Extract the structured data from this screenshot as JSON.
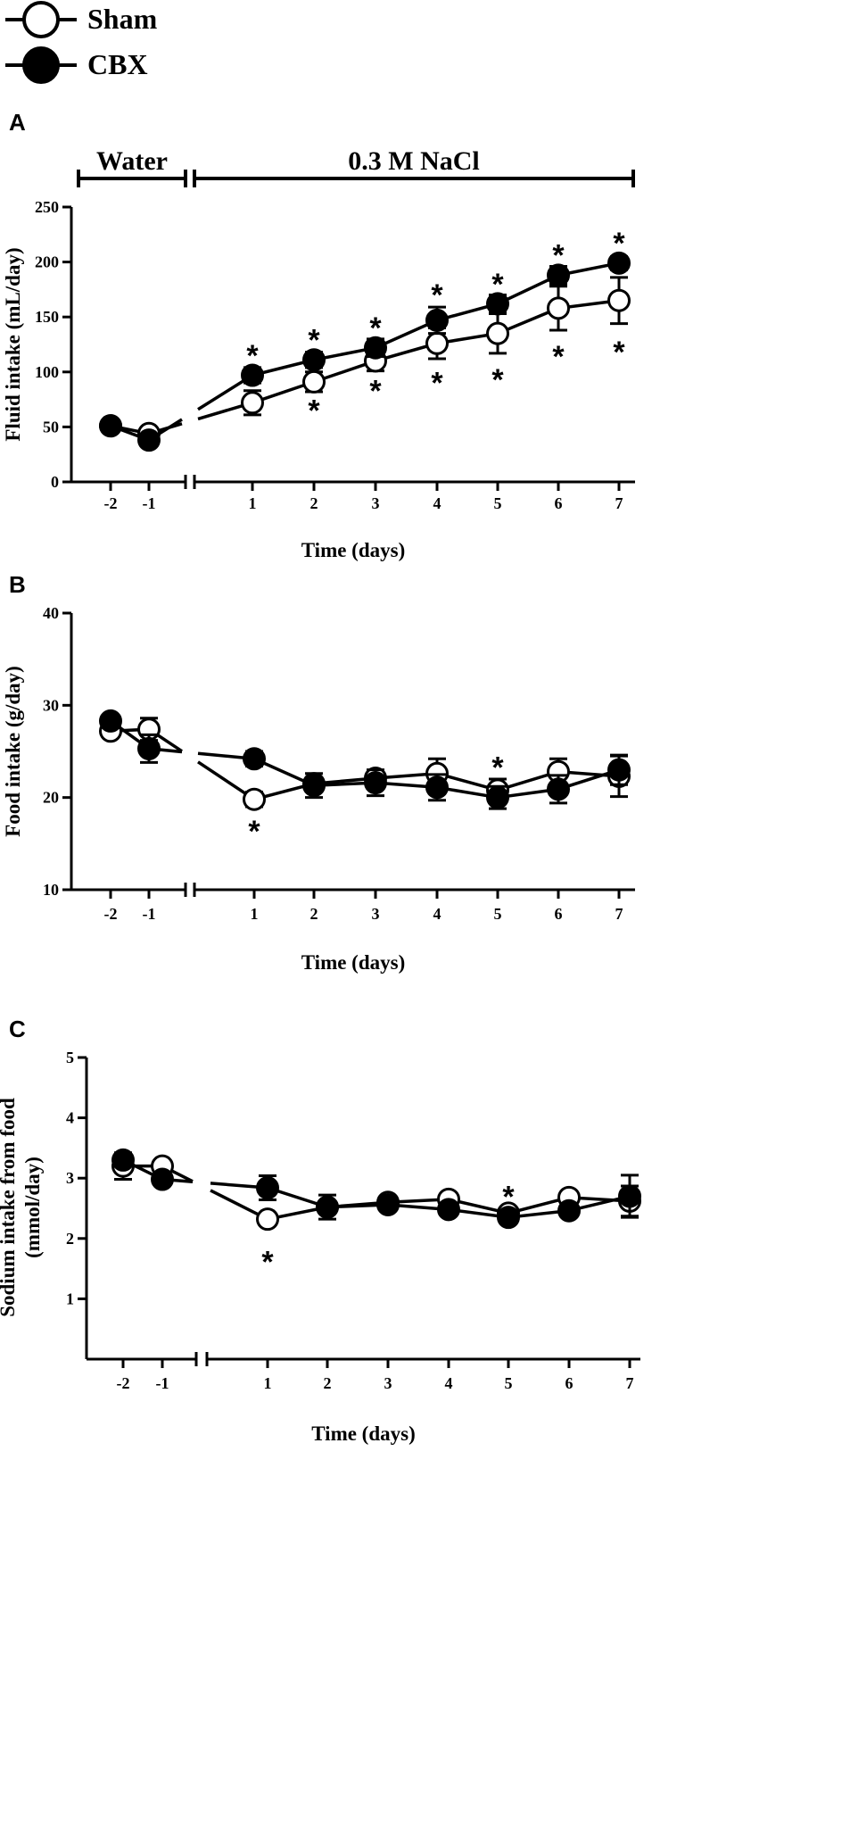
{
  "legend": {
    "items": [
      {
        "label": "Sham",
        "fill": "#ffffff"
      },
      {
        "label": "CBX",
        "fill": "#000000"
      }
    ]
  },
  "colors": {
    "line": "#000000",
    "sham_fill": "#ffffff",
    "cbx_fill": "#000000"
  },
  "brackets": {
    "water": "Water",
    "nacl": "0.3 M NaCl"
  },
  "chart_data": [
    {
      "panel": "A",
      "type": "line",
      "xlabel": "Time (days)",
      "ylabel": "Fluid intake (mL/day)",
      "ylabel_lines": [
        "Fluid intake (mL/day)"
      ],
      "ylim": [
        0,
        250
      ],
      "yticks": [
        0,
        50,
        100,
        150,
        200,
        250
      ],
      "categories": [
        "-2",
        "-1",
        "1",
        "2",
        "3",
        "4",
        "5",
        "6",
        "7"
      ],
      "broken_axis_between": [
        "-1",
        "1"
      ],
      "series": [
        {
          "name": "Sham",
          "values": [
            51,
            44,
            72,
            91,
            110,
            126,
            135,
            158,
            165
          ],
          "errors": [
            2,
            3,
            11,
            9,
            9,
            14,
            18,
            20,
            21
          ]
        },
        {
          "name": "CBX",
          "values": [
            51,
            38,
            97,
            111,
            122,
            147,
            162,
            188,
            199
          ],
          "errors": [
            2,
            3,
            7,
            7,
            8,
            12,
            8,
            8,
            6
          ]
        }
      ],
      "annotations": [
        {
          "text": "*",
          "x": "1",
          "y": 117
        },
        {
          "text": "*",
          "x": "2",
          "y": 131
        },
        {
          "text": "*",
          "x": "3",
          "y": 142
        },
        {
          "text": "*",
          "x": "4",
          "y": 172
        },
        {
          "text": "*",
          "x": "5",
          "y": 182
        },
        {
          "text": "*",
          "x": "6",
          "y": 208
        },
        {
          "text": "*",
          "x": "7",
          "y": 219
        },
        {
          "text": "*",
          "x": "2",
          "y": 67
        },
        {
          "text": "*",
          "x": "3",
          "y": 85
        },
        {
          "text": "*",
          "x": "4",
          "y": 92
        },
        {
          "text": "*",
          "x": "5",
          "y": 95
        },
        {
          "text": "*",
          "x": "6",
          "y": 116
        },
        {
          "text": "*",
          "x": "7",
          "y": 120
        }
      ]
    },
    {
      "panel": "B",
      "type": "line",
      "xlabel": "Time (days)",
      "ylabel": "Food intake (g/day)",
      "ylabel_lines": [
        "Food intake (g/day)"
      ],
      "ylim": [
        10,
        40
      ],
      "yticks": [
        10,
        20,
        30,
        40
      ],
      "categories": [
        "-2",
        "-1",
        "1",
        "2",
        "3",
        "4",
        "5",
        "6",
        "7"
      ],
      "broken_axis_between": [
        "-1",
        "1"
      ],
      "series": [
        {
          "name": "Sham",
          "values": [
            27.2,
            27.4,
            19.8,
            21.5,
            22.1,
            22.6,
            20.8,
            22.8,
            22.3
          ],
          "errors": [
            0.6,
            1.2,
            0.8,
            0.6,
            0.6,
            1.6,
            1.2,
            1.4,
            2.2
          ]
        },
        {
          "name": "CBX",
          "values": [
            28.3,
            25.3,
            24.2,
            21.3,
            21.6,
            21.1,
            20.0,
            20.9,
            23.0
          ],
          "errors": [
            0.6,
            1.5,
            0.8,
            1.3,
            1.4,
            1.4,
            1.2,
            1.5,
            1.6
          ]
        }
      ],
      "annotations": [
        {
          "text": "*",
          "x": "1",
          "y": 16.6
        },
        {
          "text": "*",
          "x": "5",
          "y": 23.5
        }
      ]
    },
    {
      "panel": "C",
      "type": "line",
      "xlabel": "Time (days)",
      "ylabel": "Sodium intake from food (mmol/day)",
      "ylabel_lines": [
        "Sodium intake from food",
        "(mmol/day)"
      ],
      "ylim": [
        0,
        5
      ],
      "yticks": [
        1,
        2,
        3,
        4,
        5
      ],
      "categories": [
        "-2",
        "-1",
        "1",
        "2",
        "3",
        "4",
        "5",
        "6",
        "7"
      ],
      "broken_axis_between": [
        "-1",
        "1"
      ],
      "series": [
        {
          "name": "Sham",
          "values": [
            3.2,
            3.2,
            2.32,
            2.52,
            2.6,
            2.65,
            2.42,
            2.68,
            2.62
          ],
          "errors": [
            0.22,
            0.1,
            0.1,
            0.1,
            0.1,
            0.1,
            0.1,
            0.1,
            0.25
          ]
        },
        {
          "name": "CBX",
          "values": [
            3.3,
            2.98,
            2.84,
            2.52,
            2.56,
            2.48,
            2.35,
            2.46,
            2.7
          ],
          "errors": [
            0.1,
            0.1,
            0.2,
            0.2,
            0.1,
            0.1,
            0.1,
            0.1,
            0.35
          ]
        }
      ],
      "annotations": [
        {
          "text": "*",
          "x": "1",
          "y": 1.65
        },
        {
          "text": "*",
          "x": "5",
          "y": 2.73
        }
      ]
    }
  ]
}
